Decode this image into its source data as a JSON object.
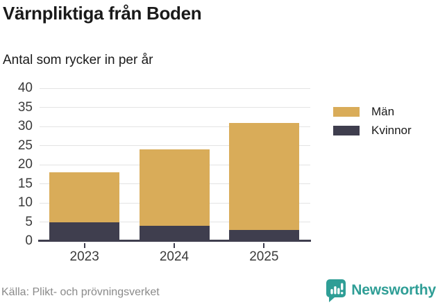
{
  "header": {
    "title": "Värnpliktiga från Boden",
    "subtitle": "Antal som rycker in per år"
  },
  "chart_data": {
    "type": "bar",
    "stacked": true,
    "title": "Värnpliktiga från Boden",
    "subtitle": "Antal som rycker in per år",
    "categories": [
      "2023",
      "2024",
      "2025"
    ],
    "series": [
      {
        "name": "Män",
        "color": "#d9ac59",
        "values": [
          13,
          20,
          28
        ]
      },
      {
        "name": "Kvinnor",
        "color": "#3f3e4e",
        "values": [
          5,
          4,
          3
        ]
      }
    ],
    "stacked_totals": [
      18,
      24,
      31
    ],
    "xlabel": "",
    "ylabel": "",
    "ylim": [
      0,
      40
    ],
    "yticks": [
      0,
      5,
      10,
      15,
      20,
      25,
      30,
      35,
      40
    ],
    "grid": true,
    "gridline_color": "#e3e3e3",
    "axis_color": "#3f3e4e",
    "legend_position": "right"
  },
  "footer": {
    "source": "Källa: Plikt- och prövningsverket",
    "brand": "Newsworthy",
    "brand_icon": "newsworthy-speech-bubble-chart-icon",
    "brand_color": "#2f9e96"
  }
}
